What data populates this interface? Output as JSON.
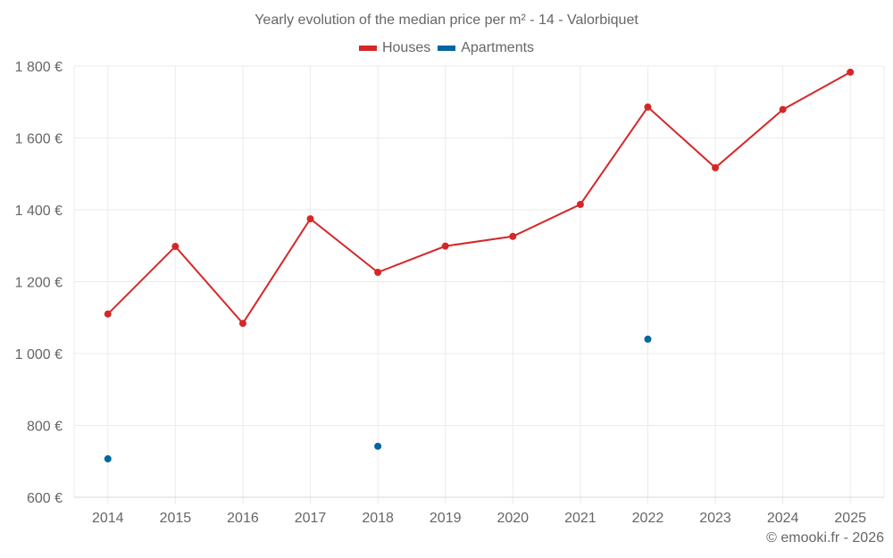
{
  "chart_data": {
    "type": "line",
    "title": "Yearly evolution of the median price per m² - 14 - Valorbiquet",
    "xlabel": "",
    "ylabel": "",
    "categories": [
      "2014",
      "2015",
      "2016",
      "2017",
      "2018",
      "2019",
      "2020",
      "2021",
      "2022",
      "2023",
      "2024",
      "2025"
    ],
    "ylim": [
      600,
      1800
    ],
    "yticks": [
      600,
      800,
      1000,
      1200,
      1400,
      1600,
      1800
    ],
    "ytick_labels": [
      "600 €",
      "800 €",
      "1 000 €",
      "1 200 €",
      "1 400 €",
      "1 600 €",
      "1 800 €"
    ],
    "grid": true,
    "legend_position": "top-center",
    "series": [
      {
        "name": "Houses",
        "color": "#d62728",
        "line": true,
        "values": [
          1110,
          1298,
          1084,
          1375,
          1226,
          1299,
          1326,
          1415,
          1686,
          1517,
          1679,
          1783
        ]
      },
      {
        "name": "Apartments",
        "color": "#0066a1",
        "line": false,
        "values": [
          707,
          null,
          null,
          null,
          742,
          null,
          null,
          null,
          1040,
          null,
          null,
          null
        ]
      }
    ]
  },
  "credit": "© emooki.fr - 2026"
}
